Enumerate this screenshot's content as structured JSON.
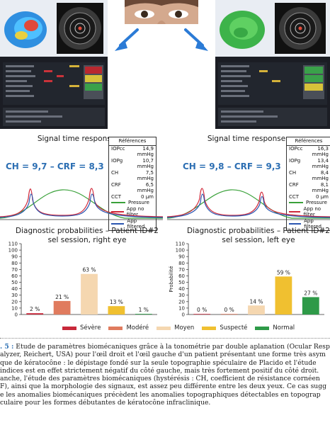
{
  "top": {
    "colors": {
      "screen_bg": "#1b1d24",
      "arrow": "#2b7bd6"
    }
  },
  "signal": {
    "left": {
      "title": "Signal time response",
      "summary": "CH = 9,7 – CRF = 8,3",
      "references_title": "Références",
      "references": [
        {
          "key": "IOPcc",
          "value": "14,9 mmHg"
        },
        {
          "key": "IOPg",
          "value": "10,7 mmHg"
        },
        {
          "key": "CH",
          "value": "7,5 mmHg"
        },
        {
          "key": "CRF",
          "value": "6,5 mmHg"
        },
        {
          "key": "CCT",
          "value": "0 µm"
        }
      ]
    },
    "right": {
      "title": "Signal time response",
      "summary": "CH = 9,8 – CRF = 9,3",
      "references_title": "Références",
      "references": [
        {
          "key": "IOPcc",
          "value": "16,3 mmHg"
        },
        {
          "key": "IOPg",
          "value": "13,4 mmHg"
        },
        {
          "key": "CH",
          "value": "8,4 mmHg"
        },
        {
          "key": "CRF",
          "value": "8,1 mmHg"
        },
        {
          "key": "CCT",
          "value": "0 µm"
        }
      ]
    },
    "legend": [
      {
        "label": "Pressure",
        "color": "#3aa13a"
      },
      {
        "label": "App no filter",
        "color": "#d0283a"
      },
      {
        "label": "App filtered",
        "color": "#2a55b0"
      }
    ]
  },
  "diagnostic": {
    "left": {
      "title_line1": "Diagnostic probabilities – Patient ID#2",
      "title_line2": "sel session, right eye",
      "ylabel": ""
    },
    "right": {
      "title_line1": "Diagnostic probabilities – Patient ID#2",
      "title_line2": "sel session, left eye",
      "ylabel": "Probabilité"
    },
    "legend": [
      {
        "label": "Sévère",
        "color": "#c8283a"
      },
      {
        "label": "Modéré",
        "color": "#e07b5e"
      },
      {
        "label": "Moyen",
        "color": "#f5d7b0"
      },
      {
        "label": "Suspecté",
        "color": "#f0c030"
      },
      {
        "label": "Normal",
        "color": "#2e9a48"
      }
    ]
  },
  "chart_data": [
    {
      "type": "bar",
      "title": "Diagnostic probabilities – Patient ID#2 sel session, right eye",
      "categories": [
        "Sévère",
        "Modéré",
        "Moyen",
        "Suspecté",
        "Normal"
      ],
      "values": [
        2,
        21,
        63,
        13,
        1
      ],
      "labels": [
        "2 %",
        "21 %",
        "63 %",
        "13 %",
        "1 %"
      ],
      "ylim": [
        0,
        110
      ],
      "yticks": [
        0,
        10,
        20,
        30,
        40,
        50,
        60,
        70,
        80,
        90,
        100,
        110
      ],
      "colors": [
        "#c8283a",
        "#e07b5e",
        "#f5d7b0",
        "#f0c030",
        "#2e9a48"
      ],
      "ylabel": ""
    },
    {
      "type": "bar",
      "title": "Diagnostic probabilities – Patient ID#2 sel session, left eye",
      "categories": [
        "Sévère",
        "Modéré",
        "Moyen",
        "Suspecté",
        "Normal"
      ],
      "values": [
        0,
        0,
        14,
        59,
        27
      ],
      "labels": [
        "0 %",
        "0 %",
        "14 %",
        "59 %",
        "27 %"
      ],
      "ylim": [
        0,
        110
      ],
      "yticks": [
        0,
        10,
        20,
        30,
        40,
        50,
        60,
        70,
        80,
        90,
        100,
        110
      ],
      "colors": [
        "#c8283a",
        "#e07b5e",
        "#f5d7b0",
        "#f0c030",
        "#2e9a48"
      ],
      "ylabel": "Probabilité"
    }
  ],
  "caption": {
    "fig_label": ". 5 :",
    "lines": [
      " Etude de paramètres biomécaniques grâce à la tonométrie par double aplanation (Ocular Respon",
      "alyzer, Reichert, USA) pour l'œil droit et l'œil gauche d'un patient présentant une forme très asym",
      "que de kératocône : le dépistage fondé sur la seule topographie spéculaire de Placido et l'étude",
      "indices est en effet strictement négatif du côté gauche, mais très fortement positif du côté droit.",
      "anche, l'étude des paramètres biomécaniques (hystérésis : CH, coefficient de résistance cornéen",
      "F), ainsi que la morphologie des signaux, est assez peu différente entre les deux yeux. Ce cas sugg",
      "e les anomalies biomécaniques précèdent les anomalies topographiques détectables en topograp",
      "culaire pour les formes débutantes de kératocône infraclinique."
    ]
  }
}
